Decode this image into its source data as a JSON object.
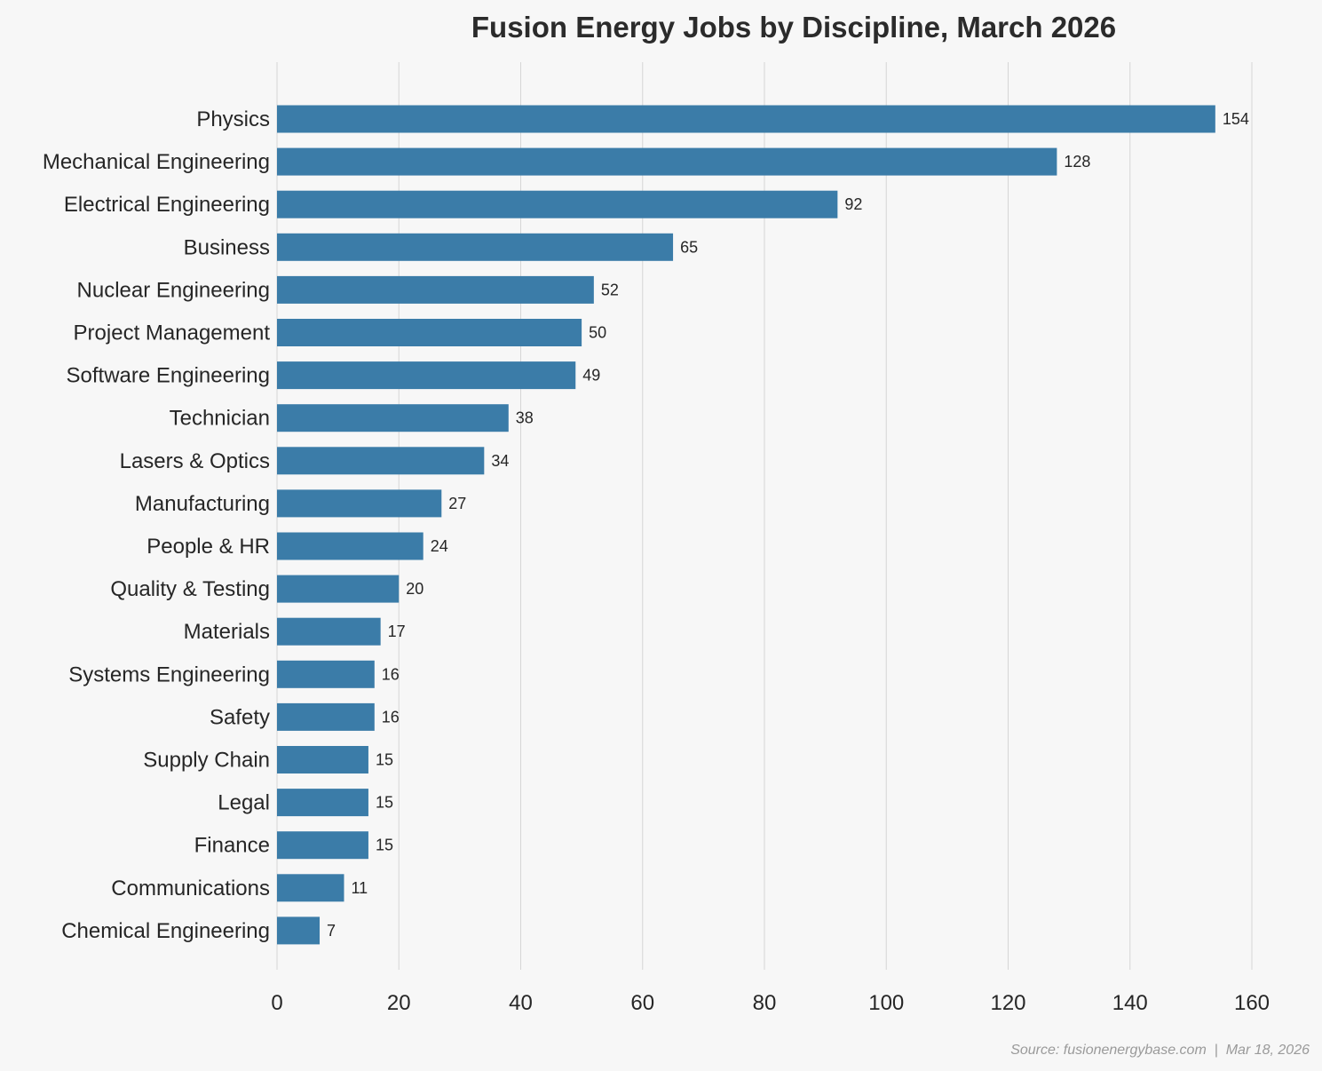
{
  "chart_data": {
    "type": "bar",
    "orientation": "horizontal",
    "title": "Fusion Energy Jobs by Discipline, March 2026",
    "xlabel": "",
    "ylabel": "",
    "xlim": [
      0,
      160
    ],
    "xticks": [
      0,
      20,
      40,
      60,
      80,
      100,
      120,
      140,
      160
    ],
    "grid": "vertical",
    "bar_color": "#3b7ca8",
    "categories": [
      "Physics",
      "Mechanical Engineering",
      "Electrical Engineering",
      "Business",
      "Nuclear Engineering",
      "Project Management",
      "Software Engineering",
      "Technician",
      "Lasers & Optics",
      "Manufacturing",
      "People & HR",
      "Quality & Testing",
      "Materials",
      "Systems Engineering",
      "Safety",
      "Supply Chain",
      "Legal",
      "Finance",
      "Communications",
      "Chemical Engineering"
    ],
    "values": [
      154,
      128,
      92,
      65,
      52,
      50,
      49,
      38,
      34,
      27,
      24,
      20,
      17,
      16,
      16,
      15,
      15,
      15,
      11,
      7
    ],
    "source": "Source: fusionenergybase.com  |  Mar 18, 2026"
  }
}
